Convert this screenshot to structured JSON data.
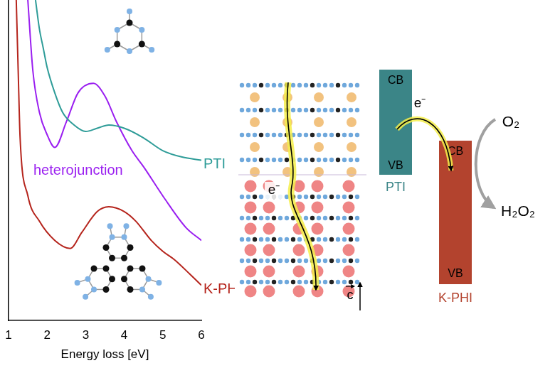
{
  "chart_data": {
    "type": "line",
    "x_label": "Energy loss [eV]",
    "xlim": [
      1,
      6
    ],
    "xticks": [
      1,
      2,
      3,
      4,
      5,
      6
    ],
    "ylim": [
      0,
      100
    ],
    "tick_labels": "x",
    "grid": false,
    "series": [
      {
        "name": "PTI",
        "color": "#2e9c98",
        "x": [
          1.7,
          1.8,
          1.9,
          2.0,
          2.2,
          2.4,
          2.7,
          3.0,
          3.3,
          3.6,
          4.0,
          4.5,
          5.0,
          5.5,
          6.0
        ],
        "values": [
          100,
          91,
          85,
          79,
          71,
          65,
          61,
          59,
          60,
          61,
          60,
          57,
          53,
          51,
          50
        ]
      },
      {
        "name": "heterojunction",
        "color": "#9a1ff0",
        "x": [
          1.5,
          1.63,
          1.8,
          2.0,
          2.2,
          2.5,
          2.8,
          3.2,
          3.5,
          3.8,
          4.2,
          4.5,
          5.05,
          5.6,
          6.0
        ],
        "values": [
          100,
          78,
          65,
          58,
          54,
          62,
          71,
          74,
          70,
          62,
          53,
          48,
          38,
          29,
          25
        ]
      },
      {
        "name": "K-PHI",
        "color": "#b5241c",
        "x": [
          1.2,
          1.25,
          1.3,
          1.5,
          1.8,
          2.2,
          2.6,
          2.9,
          3.3,
          3.6,
          4.0,
          4.3,
          4.7,
          5.0,
          5.3,
          5.7,
          6.0
        ],
        "values": [
          100,
          78,
          57,
          39,
          31,
          25,
          22.5,
          27.5,
          34,
          35.5,
          34,
          31,
          25,
          21.6,
          19,
          14.5,
          11
        ]
      }
    ]
  },
  "diagram": {
    "structure": {
      "electron": "e⁻",
      "axis": "c"
    },
    "bands": [
      {
        "name": "PTI",
        "color": "#3b8587",
        "cb": "CB",
        "vb": "VB"
      },
      {
        "name": "K-PHI",
        "color": "#b3432e",
        "cb": "CB",
        "vb": "VB"
      }
    ],
    "transfer": "e⁻",
    "reaction": {
      "from": "O₂",
      "to": "H₂O₂"
    }
  }
}
